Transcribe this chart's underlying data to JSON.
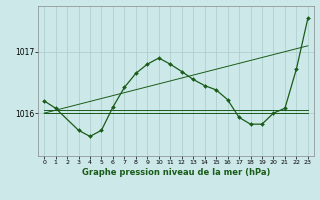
{
  "title": "Graphe pression niveau de la mer (hPa)",
  "bg_color": "#cce8e8",
  "grid_color": "#aacccc",
  "line_color": "#1a5c1a",
  "xlim": [
    -0.5,
    23.5
  ],
  "ylim": [
    1015.3,
    1017.75
  ],
  "yticks": [
    1016,
    1017
  ],
  "xticks": [
    0,
    1,
    2,
    3,
    4,
    5,
    6,
    7,
    8,
    9,
    10,
    11,
    12,
    13,
    14,
    15,
    16,
    17,
    18,
    19,
    20,
    21,
    22,
    23
  ],
  "flat_line": {
    "x": [
      0,
      23
    ],
    "y": [
      1016.0,
      1016.0
    ]
  },
  "flat_line2": {
    "x": [
      0,
      23
    ],
    "y": [
      1016.05,
      1016.05
    ]
  },
  "trend_line": {
    "x": [
      0,
      23
    ],
    "y": [
      1016.0,
      1017.1
    ]
  },
  "main_series": {
    "x": [
      0,
      1,
      3,
      4,
      5,
      6,
      7,
      8,
      9,
      10,
      11,
      12,
      13,
      14,
      15,
      16,
      17,
      18,
      19,
      20,
      21,
      22,
      23
    ],
    "y": [
      1016.2,
      1016.08,
      1015.72,
      1015.62,
      1015.72,
      1016.1,
      1016.42,
      1016.65,
      1016.8,
      1016.9,
      1016.8,
      1016.68,
      1016.55,
      1016.45,
      1016.38,
      1016.22,
      1015.93,
      1015.82,
      1015.82,
      1016.0,
      1016.08,
      1016.72,
      1017.55
    ]
  }
}
